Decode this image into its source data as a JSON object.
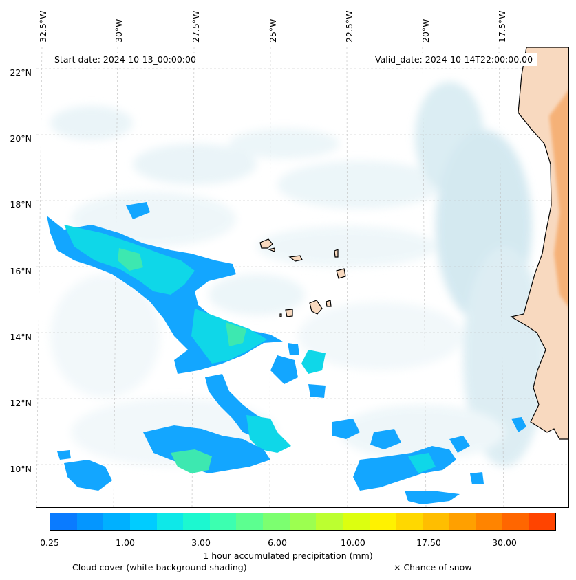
{
  "map": {
    "start_date": "Start date: 2024-10-13_00:00:00",
    "valid_date": "Valid_date: 2024-10-14T22:00:00.00",
    "lon_labels": [
      "32.5°W",
      "30°W",
      "27.5°W",
      "25°W",
      "22.5°W",
      "20°W",
      "17.5°W"
    ],
    "lat_labels": [
      "22°N",
      "20°N",
      "18°N",
      "16°N",
      "14°N",
      "12°N",
      "10°N"
    ],
    "colors": {
      "ocean": "#ffffff",
      "land": "#f8d9bf",
      "land_dry": "#f4a460",
      "cloud": "#d6ecf3",
      "coast": "#000000"
    }
  },
  "colorbar": {
    "tick_labels": [
      "0.25",
      "1.00",
      "3.00",
      "6.00",
      "10.00",
      "17.50",
      "30.00"
    ],
    "label": "1 hour accumulated precipitation (mm)",
    "colors": [
      "#0a7bff",
      "#0496ff",
      "#00b0ff",
      "#00ccff",
      "#0ee8e8",
      "#1cf8d0",
      "#3cffb0",
      "#5cff90",
      "#7cff70",
      "#9cff50",
      "#bcff30",
      "#dcff10",
      "#fff200",
      "#ffd800",
      "#ffbe00",
      "#ffa000",
      "#ff8400",
      "#ff6600",
      "#ff4400"
    ]
  },
  "notes": {
    "cloud_cover": "Cloud cover (white background shading)",
    "snow": "× Chance of snow"
  }
}
